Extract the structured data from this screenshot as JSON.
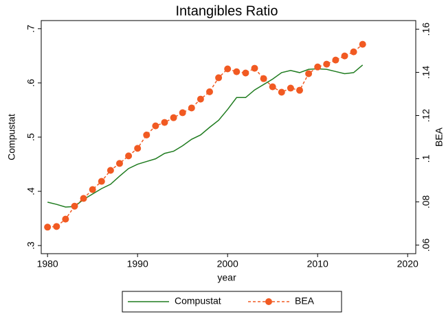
{
  "chart_data": {
    "type": "line",
    "title": "Intangibles Ratio",
    "x_label": "year",
    "y_label": "Compustat",
    "y2_label": "BEA",
    "x": [
      1980,
      1981,
      1982,
      1983,
      1984,
      1985,
      1986,
      1987,
      1988,
      1989,
      1990,
      1991,
      1992,
      1993,
      1994,
      1995,
      1996,
      1997,
      1998,
      1999,
      2000,
      2001,
      2002,
      2003,
      2004,
      2005,
      2006,
      2007,
      2008,
      2009,
      2010,
      2011,
      2012,
      2013,
      2014,
      2015
    ],
    "series": [
      {
        "name": "Compustat",
        "color": "#1e7b1e",
        "axis": "y",
        "values": [
          0.38,
          0.376,
          0.371,
          0.372,
          0.385,
          0.395,
          0.405,
          0.413,
          0.428,
          0.442,
          0.45,
          0.455,
          0.46,
          0.47,
          0.474,
          0.484,
          0.496,
          0.504,
          0.518,
          0.531,
          0.551,
          0.573,
          0.573,
          0.587,
          0.597,
          0.607,
          0.619,
          0.623,
          0.619,
          0.625,
          0.626,
          0.625,
          0.621,
          0.617,
          0.619,
          0.633
        ]
      },
      {
        "name": "BEA",
        "color": "#f15a22",
        "axis": "y2",
        "values": [
          0.0683,
          0.0686,
          0.072,
          0.078,
          0.0816,
          0.0857,
          0.0895,
          0.0946,
          0.0978,
          0.1013,
          0.1048,
          0.111,
          0.1152,
          0.1168,
          0.119,
          0.1213,
          0.1235,
          0.1276,
          0.131,
          0.1375,
          0.1416,
          0.1403,
          0.1397,
          0.1419,
          0.1371,
          0.1333,
          0.1308,
          0.1327,
          0.1317,
          0.1394,
          0.1425,
          0.1438,
          0.1457,
          0.1476,
          0.1495,
          0.153
        ]
      }
    ],
    "xlim": [
      1979.3,
      2020.9
    ],
    "xticks": [
      1980,
      1990,
      2000,
      2010,
      2020
    ],
    "ylim": [
      0.285,
      0.715
    ],
    "yticks": [
      {
        "value": 0.3,
        "label": ".3"
      },
      {
        "value": 0.4,
        "label": ".4"
      },
      {
        "value": 0.5,
        "label": ".5"
      },
      {
        "value": 0.6,
        "label": ".6"
      },
      {
        "value": 0.7,
        "label": ".7"
      }
    ],
    "y2lim": [
      0.056,
      0.164
    ],
    "y2ticks": [
      {
        "value": 0.06,
        "label": ".06"
      },
      {
        "value": 0.08,
        "label": ".08"
      },
      {
        "value": 0.1,
        "label": ".1"
      },
      {
        "value": 0.12,
        "label": ".12"
      },
      {
        "value": 0.14,
        "label": ".14"
      },
      {
        "value": 0.16,
        "label": ".16"
      }
    ],
    "legend": "bottom"
  }
}
